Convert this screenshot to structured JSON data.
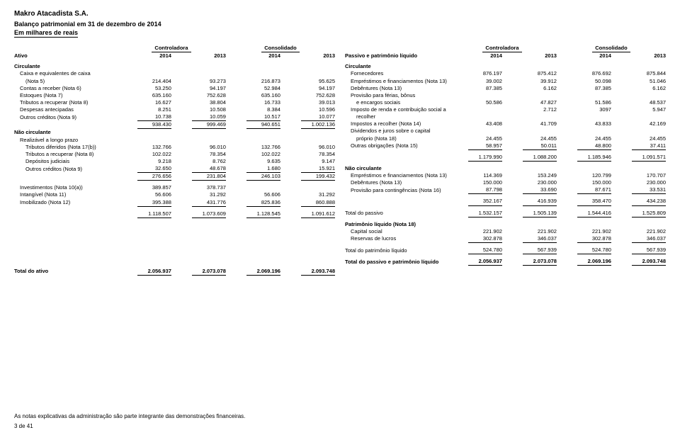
{
  "header": {
    "company": "Makro Atacadista S.A.",
    "report": "Balanço patrimonial em 31 de dezembro de 2014",
    "unit": "Em milhares de reais"
  },
  "groupLabels": {
    "controladora": "Controladora",
    "consolidado": "Consolidado"
  },
  "left": {
    "heading": "Ativo",
    "years": [
      "2014",
      "2013",
      "2014",
      "2013"
    ],
    "sections": [
      {
        "label": "Circulante",
        "bold": true
      },
      {
        "label": "Caixa e equivalentes de caixa",
        "indent": 1
      },
      {
        "label": "(Nota 5)",
        "indent": 2,
        "vals": [
          "214.404",
          "93.273",
          "216.873",
          "95.625"
        ]
      },
      {
        "label": "Contas a receber (Nota 6)",
        "indent": 1,
        "vals": [
          "53.250",
          "94.197",
          "52.984",
          "94.197"
        ]
      },
      {
        "label": "Estoques (Nota 7)",
        "indent": 1,
        "vals": [
          "635.160",
          "752.628",
          "635.160",
          "752.628"
        ]
      },
      {
        "label": "Tributos a recuperar (Nota 8)",
        "indent": 1,
        "vals": [
          "16.627",
          "38.804",
          "16.733",
          "39.013"
        ]
      },
      {
        "label": "Despesas antecipadas",
        "indent": 1,
        "vals": [
          "8.251",
          "10.508",
          "8.384",
          "10.596"
        ]
      },
      {
        "label": "Outros créditos (Nota 9)",
        "indent": 1,
        "vals": [
          "10.738",
          "10.059",
          "10.517",
          "10.077"
        ],
        "underline": true
      },
      {
        "label": "",
        "vals": [
          "938.430",
          "999.469",
          "940.651",
          "1.002.136"
        ],
        "underline": true
      },
      {
        "label": "Não circulante",
        "bold": true
      },
      {
        "label": "Realizável a longo prazo",
        "indent": 1
      },
      {
        "label": "Tributos diferidos (Nota 17(b))",
        "indent": 2,
        "vals": [
          "132.766",
          "96.010",
          "132.766",
          "96.010"
        ]
      },
      {
        "label": "Tributos a recuperar (Nota 8)",
        "indent": 2,
        "vals": [
          "102.022",
          "78.354",
          "102.022",
          "78.354"
        ]
      },
      {
        "label": "Depósitos judiciais",
        "indent": 2,
        "vals": [
          "9.218",
          "8.762",
          "9.635",
          "9.147"
        ]
      },
      {
        "label": "Outros créditos (Nota 9)",
        "indent": 2,
        "vals": [
          "32.650",
          "48.678",
          "1.680",
          "15.921"
        ],
        "underline": true
      },
      {
        "label": "",
        "vals": [
          "276.656",
          "231.804",
          "246.103",
          "199.432"
        ],
        "underline": true
      },
      {
        "spacer": true
      },
      {
        "label": "Investimentos (Nota 10(a))",
        "indent": 1,
        "vals": [
          "389.857",
          "378.737",
          "",
          ""
        ]
      },
      {
        "label": "Intangível (Nota 11)",
        "indent": 1,
        "vals": [
          "56.606",
          "31.292",
          "56.606",
          "31.292"
        ]
      },
      {
        "label": "Imobilizado (Nota 12)",
        "indent": 1,
        "vals": [
          "395.388",
          "431.776",
          "825.836",
          "860.888"
        ],
        "underline": true
      },
      {
        "spacer": true
      },
      {
        "label": "",
        "vals": [
          "1.118.507",
          "1.073.609",
          "1.128.545",
          "1.091.612"
        ],
        "underline": true
      }
    ],
    "total": {
      "label": "Total do ativo",
      "vals": [
        "2.056.937",
        "2.073.078",
        "2.069.196",
        "2.093.748"
      ]
    }
  },
  "right": {
    "heading": "Passivo e patrimônio líquido",
    "years": [
      "2014",
      "2013",
      "2014",
      "2013"
    ],
    "sections": [
      {
        "label": "Circulante",
        "bold": true
      },
      {
        "label": "Fornecedores",
        "indent": 1,
        "vals": [
          "876.197",
          "875.412",
          "876.692",
          "875.844"
        ]
      },
      {
        "label": "Empréstimos e financiamentos (Nota 13)",
        "indent": 1,
        "vals": [
          "39.002",
          "39.912",
          "50.098",
          "51.046"
        ]
      },
      {
        "label": "Debêntures (Nota 13)",
        "indent": 1,
        "vals": [
          "87.385",
          "6.162",
          "87.385",
          "6.162"
        ]
      },
      {
        "label": "Provisão para férias, bônus",
        "indent": 1
      },
      {
        "label": "e encargos sociais",
        "indent": 2,
        "vals": [
          "50.586",
          "47.827",
          "51.586",
          "48.537"
        ]
      },
      {
        "label": "Imposto de renda e contribuição social a",
        "indent": 1,
        "vals": [
          "",
          "2.712",
          "3097",
          "5.947"
        ]
      },
      {
        "label": "recolher",
        "indent": 2
      },
      {
        "label": "Impostos a recolher (Nota 14)",
        "indent": 1,
        "vals": [
          "43.408",
          "41.709",
          "43.833",
          "42.169"
        ]
      },
      {
        "label": "Dividendos e juros sobre o capital",
        "indent": 1
      },
      {
        "label": "próprio (Nota 18)",
        "indent": 2,
        "vals": [
          "24.455",
          "24.455",
          "24.455",
          "24.455"
        ]
      },
      {
        "label": "Outras obrigações (Nota 15)",
        "indent": 1,
        "vals": [
          "58.957",
          "50.011",
          "48.800",
          "37.411"
        ],
        "underline": true
      },
      {
        "spacer": true
      },
      {
        "label": "",
        "vals": [
          "1.179.990",
          "1.088.200",
          "1.185.946",
          "1.091.571"
        ],
        "underline": true
      },
      {
        "spacer": true
      },
      {
        "label": "Não circulante",
        "bold": true
      },
      {
        "label": "Empréstimos e financiamentos (Nota 13)",
        "indent": 1,
        "vals": [
          "114.369",
          "153.249",
          "120.799",
          "170.707"
        ]
      },
      {
        "label": "Debêntures (Nota 13)",
        "indent": 1,
        "vals": [
          "150.000",
          "230.000",
          "150.000",
          "230.000"
        ]
      },
      {
        "label": "Provisão para contingências (Nota 16)",
        "indent": 1,
        "vals": [
          "87.798",
          "33.690",
          "87.671",
          "33.531"
        ],
        "underline": true
      },
      {
        "spacer": true
      },
      {
        "label": "",
        "vals": [
          "352.167",
          "416.939",
          "358.470",
          "434.238"
        ],
        "underline": true
      },
      {
        "spacer": true
      },
      {
        "label": "Total do passivo",
        "vals": [
          "1.532.157",
          "1.505.139",
          "1.544.416",
          "1.525.809"
        ],
        "underline": true
      },
      {
        "spacer": true
      },
      {
        "label": "Patrimônio líquido (Nota 18)",
        "bold": true
      },
      {
        "label": "Capital social",
        "indent": 1,
        "vals": [
          "221.902",
          "221.902",
          "221.902",
          "221.902"
        ]
      },
      {
        "label": "Reservas de lucros",
        "indent": 1,
        "vals": [
          "302.878",
          "346.037",
          "302.878",
          "346.037"
        ],
        "underline": true
      },
      {
        "spacer": true
      },
      {
        "label": "Total do patrimônio líquido",
        "vals": [
          "524.780",
          "567.939",
          "524.780",
          "567.939"
        ],
        "underline": true
      }
    ],
    "total": {
      "label": "Total do passivo e patrimônio líquido",
      "vals": [
        "2.056.937",
        "2.073.078",
        "2.069.196",
        "2.093.748"
      ]
    }
  },
  "footnote": "As notas explicativas da administração são parte integrante das demonstrações financeiras.",
  "pageNumber": "3 de 41"
}
